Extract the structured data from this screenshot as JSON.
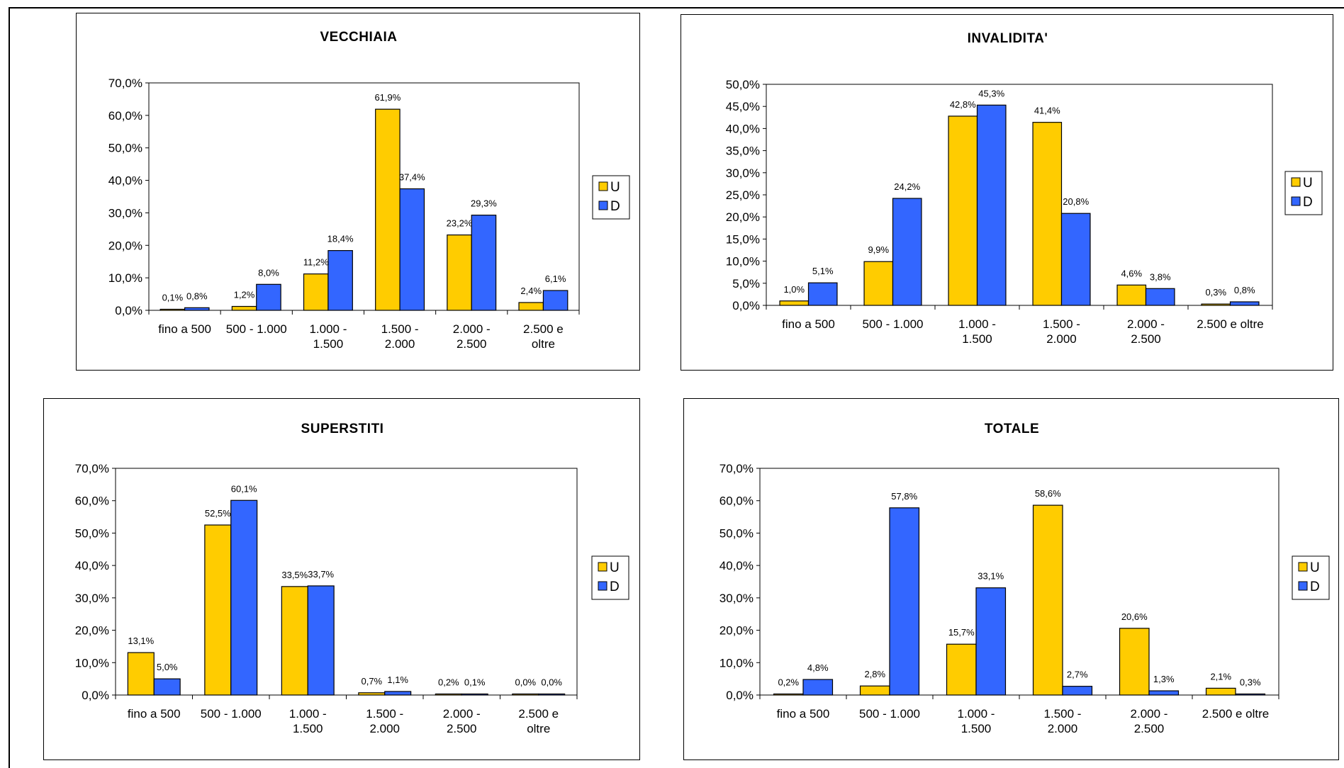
{
  "colors": {
    "U": "#FFCC00",
    "D": "#3366FF",
    "stroke": "#000000"
  },
  "chart_data": [
    {
      "type": "bar",
      "title": "VECCHIAIA",
      "categories": [
        [
          "fino a 500"
        ],
        [
          "500 - 1.000"
        ],
        [
          "1.000 -",
          "1.500"
        ],
        [
          "1.500 -",
          "2.000"
        ],
        [
          "2.000 -",
          "2.500"
        ],
        [
          "2.500 e",
          "oltre"
        ]
      ],
      "series": [
        {
          "name": "U",
          "values": [
            0.1,
            1.2,
            11.2,
            61.9,
            23.2,
            2.4
          ],
          "labels": [
            "0,1%",
            "1,2%",
            "11,2%",
            "61,9%",
            "23,2%",
            "2,4%"
          ]
        },
        {
          "name": "D",
          "values": [
            0.8,
            8.0,
            18.4,
            37.4,
            29.3,
            6.1
          ],
          "labels": [
            "0,8%",
            "8,0%",
            "18,4%",
            "37,4%",
            "29,3%",
            "6,1%"
          ]
        }
      ],
      "ylim": [
        0,
        70
      ],
      "yticks": [
        "0,0%",
        "10,0%",
        "20,0%",
        "30,0%",
        "40,0%",
        "50,0%",
        "60,0%",
        "70,0%"
      ],
      "legend": [
        "U",
        "D"
      ],
      "legend_position": "right"
    },
    {
      "type": "bar",
      "title": "INVALIDITA'",
      "categories": [
        [
          "fino a 500"
        ],
        [
          "500 - 1.000"
        ],
        [
          "1.000 -",
          "1.500"
        ],
        [
          "1.500 -",
          "2.000"
        ],
        [
          "2.000 -",
          "2.500"
        ],
        [
          "2.500 e oltre"
        ]
      ],
      "series": [
        {
          "name": "U",
          "values": [
            1.0,
            9.9,
            42.8,
            41.4,
            4.6,
            0.3
          ],
          "labels": [
            "1,0%",
            "9,9%",
            "42,8%",
            "41,4%",
            "4,6%",
            "0,3%"
          ]
        },
        {
          "name": "D",
          "values": [
            5.1,
            24.2,
            45.3,
            20.8,
            3.8,
            0.8
          ],
          "labels": [
            "5,1%",
            "24,2%",
            "45,3%",
            "20,8%",
            "3,8%",
            "0,8%"
          ]
        }
      ],
      "ylim": [
        0,
        50
      ],
      "yticks": [
        "0,0%",
        "5,0%",
        "10,0%",
        "15,0%",
        "20,0%",
        "25,0%",
        "30,0%",
        "35,0%",
        "40,0%",
        "45,0%",
        "50,0%"
      ],
      "legend": [
        "U",
        "D"
      ],
      "legend_position": "right"
    },
    {
      "type": "bar",
      "title": "SUPERSTITI",
      "categories": [
        [
          "fino a 500"
        ],
        [
          "500 - 1.000"
        ],
        [
          "1.000 -",
          "1.500"
        ],
        [
          "1.500 -",
          "2.000"
        ],
        [
          "2.000 -",
          "2.500"
        ],
        [
          "2.500 e",
          "oltre"
        ]
      ],
      "series": [
        {
          "name": "U",
          "values": [
            13.1,
            52.5,
            33.5,
            0.7,
            0.2,
            0.0
          ],
          "labels": [
            "13,1%",
            "52,5%",
            "33,5%",
            "0,7%",
            "0,2%",
            "0,0%"
          ]
        },
        {
          "name": "D",
          "values": [
            5.0,
            60.1,
            33.7,
            1.1,
            0.1,
            0.0
          ],
          "labels": [
            "5,0%",
            "60,1%",
            "33,7%",
            "1,1%",
            "0,1%",
            "0,0%"
          ]
        }
      ],
      "ylim": [
        0,
        70
      ],
      "yticks": [
        "0,0%",
        "10,0%",
        "20,0%",
        "30,0%",
        "40,0%",
        "50,0%",
        "60,0%",
        "70,0%"
      ],
      "legend": [
        "U",
        "D"
      ],
      "legend_position": "right"
    },
    {
      "type": "bar",
      "title": "TOTALE",
      "categories": [
        [
          "fino a 500"
        ],
        [
          "500 - 1.000"
        ],
        [
          "1.000 -",
          "1.500"
        ],
        [
          "1.500 -",
          "2.000"
        ],
        [
          "2.000 -",
          "2.500"
        ],
        [
          "2.500 e oltre"
        ]
      ],
      "series": [
        {
          "name": "U",
          "values": [
            0.2,
            2.8,
            15.7,
            58.6,
            20.6,
            2.1
          ],
          "labels": [
            "0,2%",
            "2,8%",
            "15,7%",
            "58,6%",
            "20,6%",
            "2,1%"
          ]
        },
        {
          "name": "D",
          "values": [
            4.8,
            57.8,
            33.1,
            2.7,
            1.3,
            0.3
          ],
          "labels": [
            "4,8%",
            "57,8%",
            "33,1%",
            "2,7%",
            "1,3%",
            "0,3%"
          ]
        }
      ],
      "ylim": [
        0,
        70
      ],
      "yticks": [
        "0,0%",
        "10,0%",
        "20,0%",
        "30,0%",
        "40,0%",
        "50,0%",
        "60,0%",
        "70,0%"
      ],
      "legend": [
        "U",
        "D"
      ],
      "legend_position": "right"
    }
  ]
}
